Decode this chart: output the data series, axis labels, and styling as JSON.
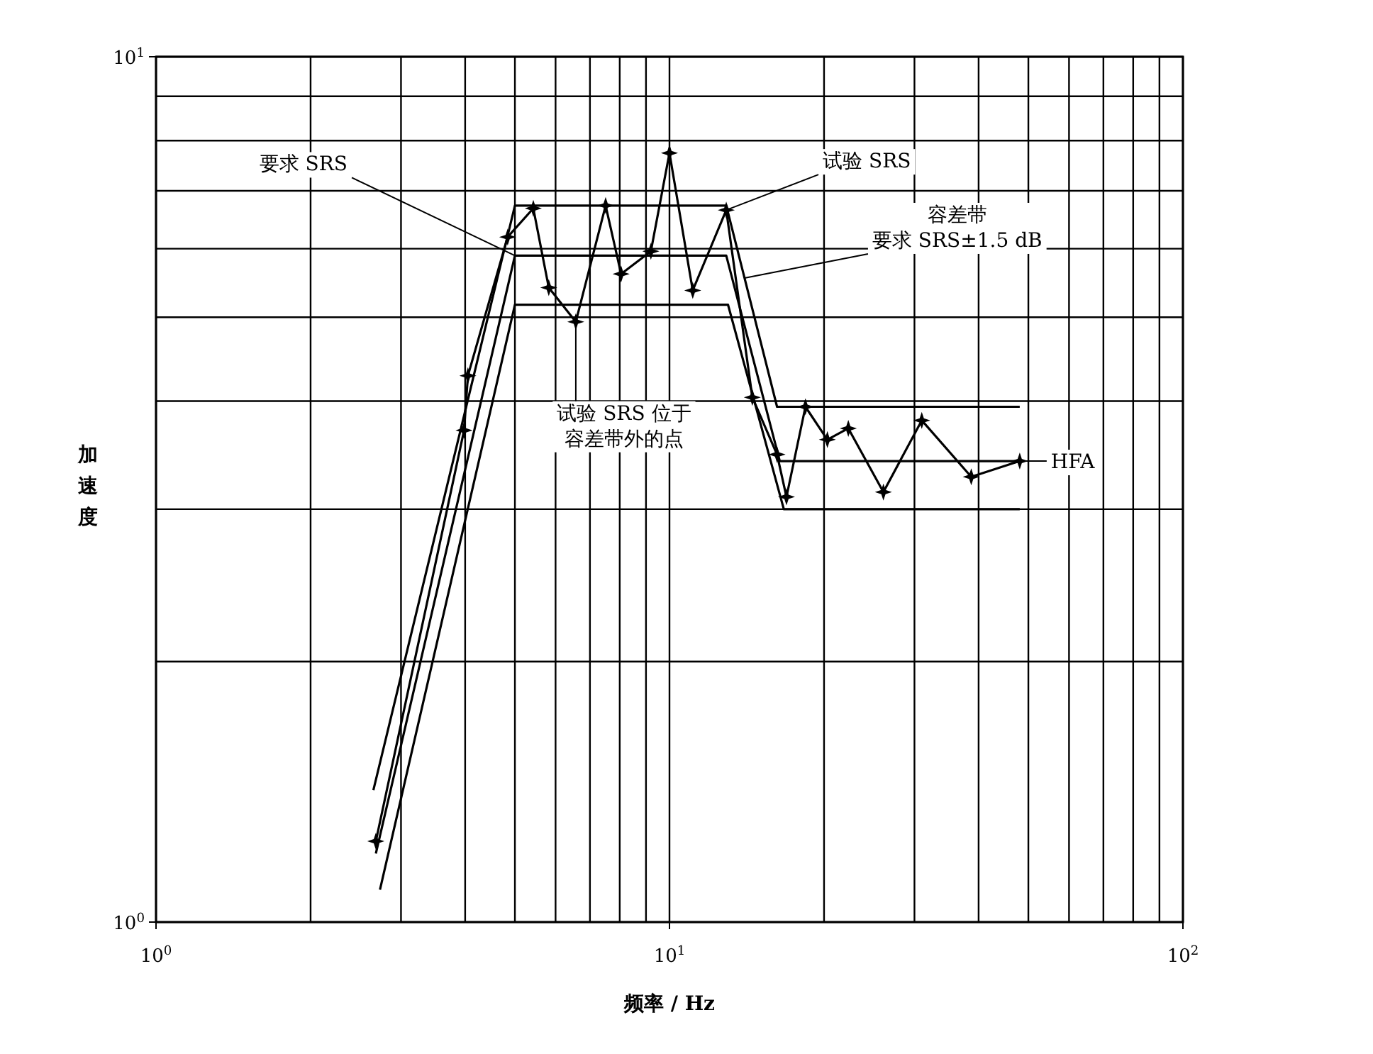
{
  "chart_data": {
    "type": "line",
    "xlabel": "频率 / Hz",
    "ylabel": "加速度",
    "log": "xy",
    "grid": true,
    "xlim": [
      1,
      100
    ],
    "ylim": [
      1,
      10
    ],
    "xticks": [
      {
        "value": 1,
        "label": "10$^{0}$"
      },
      {
        "value": 10,
        "label": "10$^{1}$"
      },
      {
        "value": 100,
        "label": "10$^{2}$"
      }
    ],
    "yticks": [
      {
        "value": 1,
        "label": "10$^{0}$"
      },
      {
        "value": 10,
        "label": "10$^{1}$"
      }
    ],
    "series": [
      {
        "color": "#000000",
        "marker": "none",
        "x": [
          2.65,
          5.0,
          12.9,
          16.2,
          48.1
        ],
        "values": [
          1.42,
          6.73,
          6.73,
          3.94,
          3.94
        ]
      },
      {
        "color": "#000000",
        "marker": "none",
        "x": [
          2.68,
          5.0,
          12.9,
          16.4,
          48.1
        ],
        "values": [
          1.2,
          5.89,
          5.89,
          3.41,
          3.41
        ]
      },
      {
        "color": "#000000",
        "marker": "none",
        "x": [
          2.73,
          5.0,
          13.0,
          16.7,
          48.1
        ],
        "values": [
          1.09,
          5.17,
          5.17,
          3.0,
          3.0
        ]
      },
      {
        "color": "#000000",
        "marker": "star",
        "x": [
          2.68,
          3.98,
          4.05,
          4.84,
          5.43,
          5.82,
          6.57,
          7.51,
          8.05,
          9.2,
          10,
          11.1,
          12.9,
          14.5,
          16.2,
          16.9,
          18.4,
          20.3,
          22.3,
          26.1,
          31.0,
          38.7,
          48.1
        ],
        "values": [
          1.24,
          3.7,
          4.28,
          6.19,
          6.68,
          5.41,
          4.94,
          6.73,
          5.61,
          5.96,
          7.74,
          5.37,
          6.65,
          4.04,
          3.47,
          3.1,
          3.94,
          3.61,
          3.72,
          3.14,
          3.8,
          3.27,
          3.41
        ]
      }
    ],
    "annotations": [
      {
        "text": "要求 SRS",
        "x": 5.0,
        "y": 5.89
      },
      {
        "text": "试验 SRS",
        "x": 12.9,
        "y": 6.65
      },
      {
        "text": "容差带要求 SRS±1.5 dB",
        "x": 14.0,
        "y": 5.55
      },
      {
        "text": "试验 SRS 位于容差带外的点",
        "x": 6.57,
        "y": 4.94
      },
      {
        "text": "HFA",
        "x": 48.1,
        "y": 3.41
      }
    ]
  }
}
